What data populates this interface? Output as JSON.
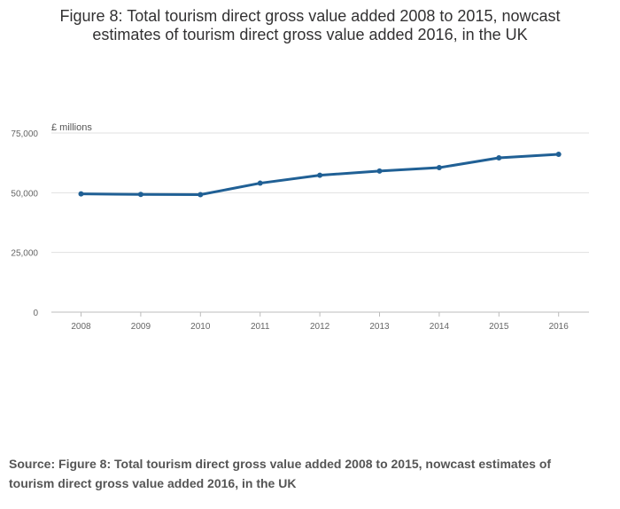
{
  "title_line1": "Figure 8: Total tourism direct gross value added 2008 to 2015, nowcast",
  "title_line2": "estimates of tourism direct gross value added 2016, in the UK",
  "source": "Source: Figure 8: Total tourism direct gross value added 2008 to 2015, nowcast estimates of tourism direct gross value added 2016, in the UK",
  "colors": {
    "line": "#206095",
    "grid": "#e0e0e0",
    "axis": "#bcbcbc"
  },
  "chart_data": {
    "type": "line",
    "title": "Figure 8: Total tourism direct gross value added 2008 to 2015, nowcast estimates of tourism direct gross value added 2016, in the UK",
    "xlabel": "",
    "ylabel": "£ millions",
    "categories": [
      "2008",
      "2009",
      "2010",
      "2011",
      "2012",
      "2013",
      "2014",
      "2015",
      "2016"
    ],
    "series": [
      {
        "values": [
          49500,
          49300,
          49200,
          54000,
          57300,
          59100,
          60500,
          64600,
          66100
        ]
      }
    ],
    "ylim": [
      0,
      75000
    ],
    "yticks": [
      0,
      25000,
      50000,
      75000
    ],
    "ytick_labels": [
      "0",
      "25,000",
      "50,000",
      "75,000"
    ],
    "grid": true,
    "legend": "none"
  }
}
